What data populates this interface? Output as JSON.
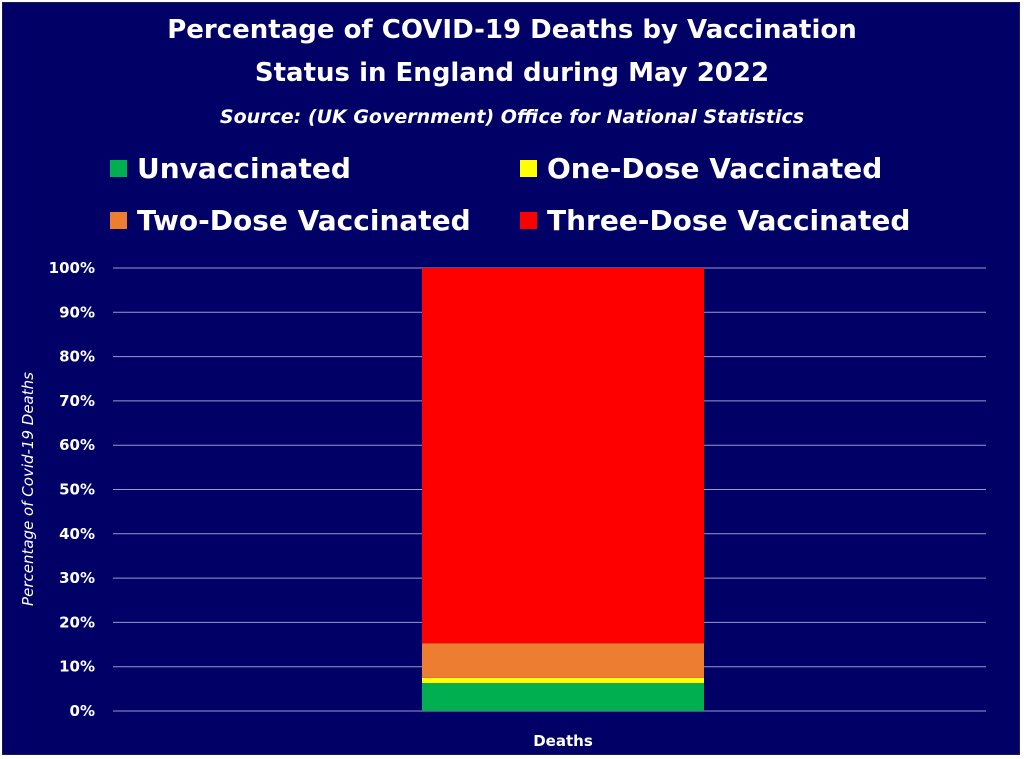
{
  "colors": {
    "background": "#000066",
    "text": "#ffffff",
    "gridline": "#9a9ac8"
  },
  "chart_data": {
    "type": "bar",
    "stacked": true,
    "title_lines": [
      "Percentage of COVID-19 Deaths by Vaccination",
      "Status in England during May 2022"
    ],
    "subtitle": "Source: (UK Government) Office for National Statistics",
    "xlabel": "",
    "ylabel": "Percentage of Covid-19 Deaths",
    "ylim": [
      0,
      100
    ],
    "y_ticks": [
      0,
      10,
      20,
      30,
      40,
      50,
      60,
      70,
      80,
      90,
      100
    ],
    "y_tick_suffix": "%",
    "grid": true,
    "legend_position": "top",
    "categories": [
      "Deaths"
    ],
    "series": [
      {
        "name": "Unvaccinated",
        "values": [
          6.3
        ],
        "color": "#00b050"
      },
      {
        "name": "One-Dose Vaccinated",
        "values": [
          1.2
        ],
        "color": "#ffff00"
      },
      {
        "name": "Two-Dose Vaccinated",
        "values": [
          7.8
        ],
        "color": "#ed7d31"
      },
      {
        "name": "Three-Dose Vaccinated",
        "values": [
          84.7
        ],
        "color": "#ff0000"
      }
    ]
  }
}
